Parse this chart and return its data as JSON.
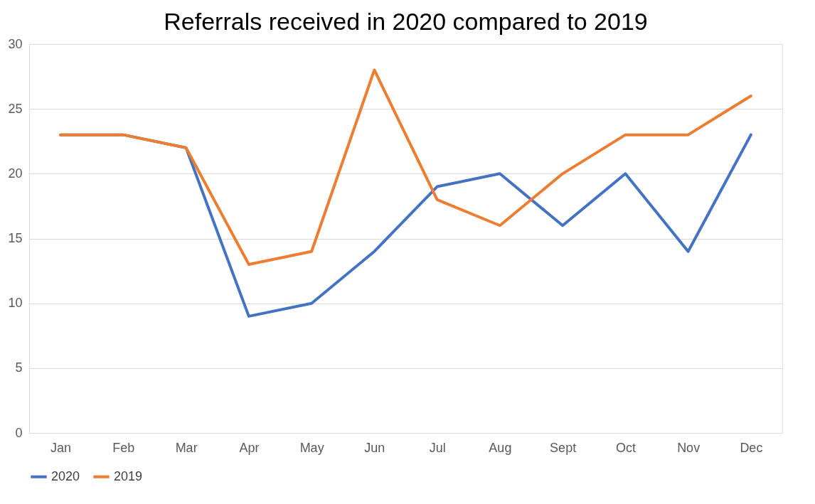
{
  "chart_data": {
    "type": "line",
    "title": "Referrals received in 2020 compared to 2019",
    "categories": [
      "Jan",
      "Feb",
      "Mar",
      "Apr",
      "May",
      "Jun",
      "Jul",
      "Aug",
      "Sept",
      "Oct",
      "Nov",
      "Dec"
    ],
    "series": [
      {
        "name": "2020",
        "color": "#4472c4",
        "values": [
          23,
          23,
          22,
          9,
          10,
          14,
          19,
          20,
          16,
          20,
          14,
          23
        ]
      },
      {
        "name": "2019",
        "color": "#ed7d31",
        "values": [
          23,
          23,
          22,
          13,
          14,
          28,
          18,
          16,
          20,
          23,
          23,
          26
        ]
      }
    ],
    "ylim": [
      0,
      30
    ],
    "yticks": [
      0,
      5,
      10,
      15,
      20,
      25,
      30
    ],
    "grid": "y",
    "legend": "bottom",
    "marker": "none",
    "line_style": "solid"
  }
}
